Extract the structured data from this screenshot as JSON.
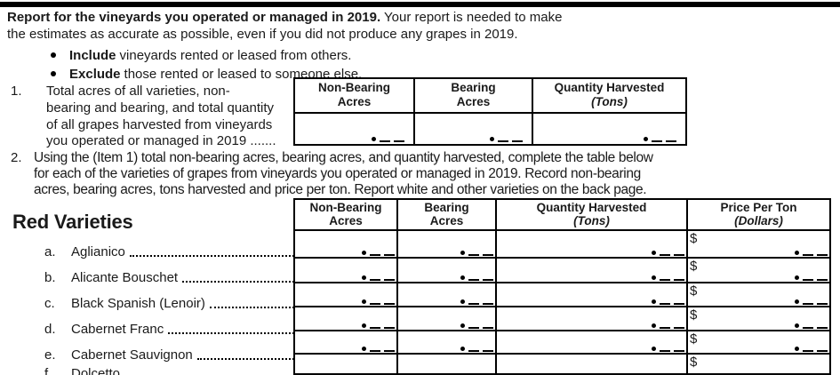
{
  "intro": {
    "line1_bold": "Report for the vineyards you operated or managed in 2019.",
    "line1_rest": "  Your report is needed to make",
    "line2": "the estimates as accurate as possible, even if you did not produce any grapes in 2019."
  },
  "bullets": [
    {
      "bold": "Include",
      "rest": "vineyards rented or leased from others."
    },
    {
      "bold": "Exclude",
      "rest": "those rented or leased to someone else."
    }
  ],
  "item1": {
    "number": "1.",
    "lines": [
      "Total acres of all varieties, non-",
      "bearing and bearing, and total quantity",
      "of all grapes harvested from vineyards",
      "you operated or managed in 2019 ......."
    ]
  },
  "item2": {
    "number": "2.",
    "lines": [
      "Using the (Item 1) total non-bearing acres, bearing acres, and quantity harvested, complete the table below",
      "for each of the varieties of grapes from vineyards you operated or managed in 2019. Record non-bearing",
      "acres, bearing acres, tons harvested and price per ton.  Report white and other varieties on the back page."
    ]
  },
  "section_heading": "Red Varieties",
  "table1": {
    "headers": [
      {
        "line1": "Non-Bearing",
        "line2": "Acres"
      },
      {
        "line1": "Bearing",
        "line2": "Acres"
      },
      {
        "line1": "Quantity Harvested",
        "line2": "(Tons)"
      }
    ]
  },
  "table2": {
    "headers": [
      {
        "line1": "Non-Bearing",
        "line2": "Acres"
      },
      {
        "line1": "Bearing",
        "line2": "Acres"
      },
      {
        "line1": "Quantity Harvested",
        "line2": "(Tons)"
      },
      {
        "line1": "Price Per Ton",
        "line2": "(Dollars)"
      }
    ],
    "currency_symbol": "$",
    "varieties": [
      {
        "letter": "a.",
        "name": "Aglianico"
      },
      {
        "letter": "b.",
        "name": "Alicante Bouschet"
      },
      {
        "letter": "c.",
        "name": "Black Spanish (Lenoir)"
      },
      {
        "letter": "d.",
        "name": "Cabernet Franc"
      },
      {
        "letter": "e.",
        "name": "Cabernet Sauvignon"
      },
      {
        "letter": "f.",
        "name": "Dolcetto"
      }
    ]
  }
}
